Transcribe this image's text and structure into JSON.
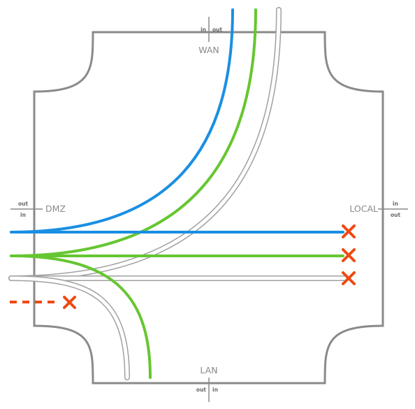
{
  "interfaces": {
    "wan": {
      "name": "WAN",
      "in": "in",
      "out": "out"
    },
    "dmz": {
      "name": "DMZ",
      "out": "out",
      "in": "in"
    },
    "local": {
      "name": "LOCAL",
      "in": "in",
      "out": "out"
    },
    "lan": {
      "name": "LAN",
      "out": "out",
      "in": "in"
    }
  },
  "colors": {
    "box": "#8a8a8a",
    "blue_flow": "#1a8fe3",
    "green_flow": "#66c631",
    "hollow_flow": "#a0a0a0",
    "blocked": "#ee4a12"
  },
  "icons": [
    "cross-icon",
    "cross-icon",
    "cross-icon",
    "cross-icon"
  ]
}
